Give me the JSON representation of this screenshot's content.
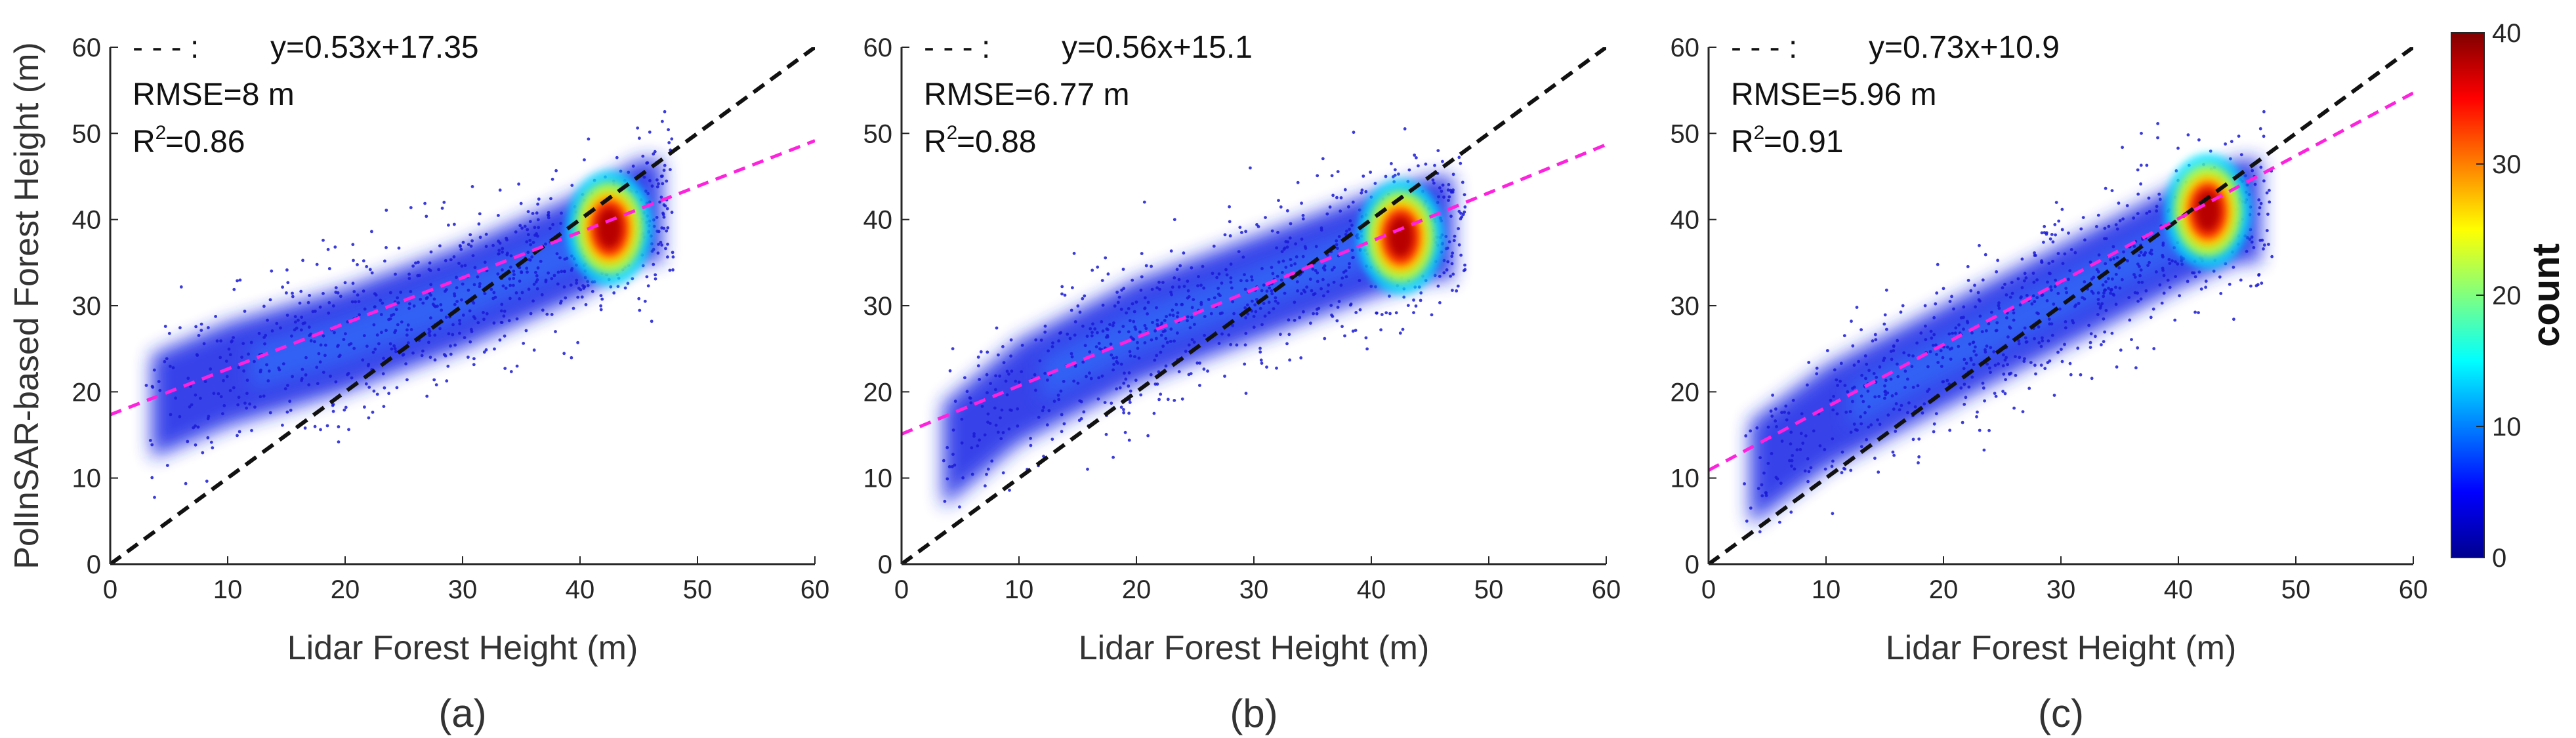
{
  "chart_data": [
    {
      "type": "scatter",
      "panel_label": "(a)",
      "xlabel": "Lidar Forest Height  (m)",
      "ylabel": "PolInSAR-based Forest Height (m)",
      "xlim": [
        0,
        60
      ],
      "ylim": [
        0,
        60
      ],
      "xticks": [
        "0",
        "10",
        "20",
        "30",
        "40",
        "50",
        "60"
      ],
      "yticks": [
        "0",
        "10",
        "20",
        "30",
        "40",
        "50",
        "60"
      ],
      "legend_line": "- - - :",
      "equation": "y=0.53x+17.35",
      "rmse": "RMSE=8 m",
      "r2": "=0.86",
      "fit": {
        "slope": 0.53,
        "intercept": 17.35
      },
      "reference_line": {
        "slope": 1,
        "intercept": 0
      },
      "density_core": {
        "x": 42.5,
        "y": 39
      },
      "trend": [
        [
          3,
          18
        ],
        [
          10,
          22
        ],
        [
          20,
          26
        ],
        [
          30,
          31
        ],
        [
          40,
          37
        ],
        [
          45,
          41
        ]
      ]
    },
    {
      "type": "scatter",
      "panel_label": "(b)",
      "xlabel": "Lidar Forest Height  (m)",
      "ylabel": "",
      "xlim": [
        0,
        60
      ],
      "ylim": [
        0,
        60
      ],
      "xticks": [
        "0",
        "10",
        "20",
        "30",
        "40",
        "50",
        "60"
      ],
      "yticks": [
        "0",
        "10",
        "20",
        "30",
        "40",
        "50",
        "60"
      ],
      "legend_line": "- - - :",
      "equation": "y=0.56x+15.1",
      "rmse": "RMSE=6.77 m",
      "r2": "=0.88",
      "fit": {
        "slope": 0.56,
        "intercept": 15.1
      },
      "reference_line": {
        "slope": 1,
        "intercept": 0
      },
      "density_core": {
        "x": 42.5,
        "y": 38
      },
      "trend": [
        [
          3,
          12
        ],
        [
          10,
          20
        ],
        [
          20,
          27
        ],
        [
          30,
          32
        ],
        [
          40,
          37
        ],
        [
          45,
          39
        ]
      ]
    },
    {
      "type": "scatter",
      "panel_label": "(c)",
      "xlabel": "Lidar Forest Height  (m)",
      "ylabel": "",
      "xlim": [
        0,
        60
      ],
      "ylim": [
        0,
        60
      ],
      "xticks": [
        "0",
        "10",
        "20",
        "30",
        "40",
        "50",
        "60"
      ],
      "yticks": [
        "0",
        "10",
        "20",
        "30",
        "40",
        "50",
        "60"
      ],
      "legend_line": "- - - :",
      "equation": "y=0.73x+10.9",
      "rmse": "RMSE=5.96 m",
      "r2": "=0.91",
      "fit": {
        "slope": 0.73,
        "intercept": 10.9
      },
      "reference_line": {
        "slope": 1,
        "intercept": 0
      },
      "density_core": {
        "x": 42.5,
        "y": 41
      },
      "trend": [
        [
          3,
          10
        ],
        [
          10,
          17
        ],
        [
          20,
          24
        ],
        [
          30,
          31
        ],
        [
          40,
          38
        ],
        [
          45,
          41
        ]
      ]
    }
  ],
  "colorbar": {
    "label": "count",
    "range": [
      0,
      40
    ],
    "ticks": [
      "0",
      "10",
      "20",
      "30",
      "40"
    ],
    "colormap": "jet"
  },
  "colors": {
    "fit_line": "#ff22dd",
    "reference_line": "#111111",
    "axis": "#262626",
    "sparse_points": "#1a1ad6"
  }
}
